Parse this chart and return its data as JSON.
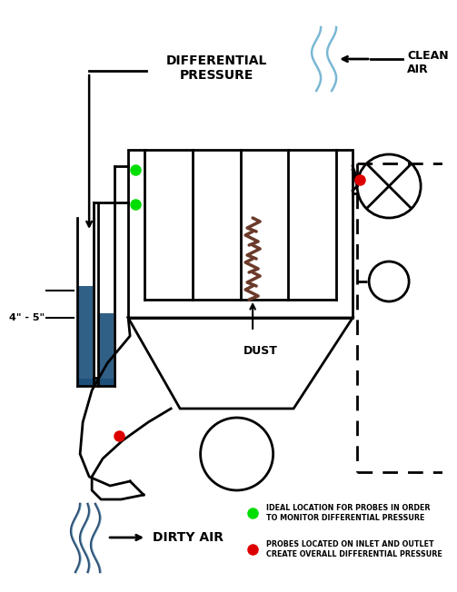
{
  "bg_color": "#ffffff",
  "line_color": "#000000",
  "green_dot_color": "#00dd00",
  "red_dot_color": "#dd0000",
  "blue_color": "#1a4f7a",
  "light_blue_color": "#7ab8d4",
  "brown_color": "#6B3A2A",
  "legend1_text": "IDEAL LOCATION FOR PROBES IN ORDER\nTO MONITOR DIFFERENTIAL PRESSURE",
  "legend2_text": "PROBES LOCATED ON INLET AND OUTLET\nCREATE OVERALL DIFFERENTIAL PRESSURE",
  "diff_pressure_label": "DIFFERENTIAL\nPRESSURE",
  "clean_air_label": "CLEAN\nAIR",
  "dirty_air_label": "DIRTY AIR",
  "dust_label": "DUST",
  "measurement_label": "4\" - 5\""
}
